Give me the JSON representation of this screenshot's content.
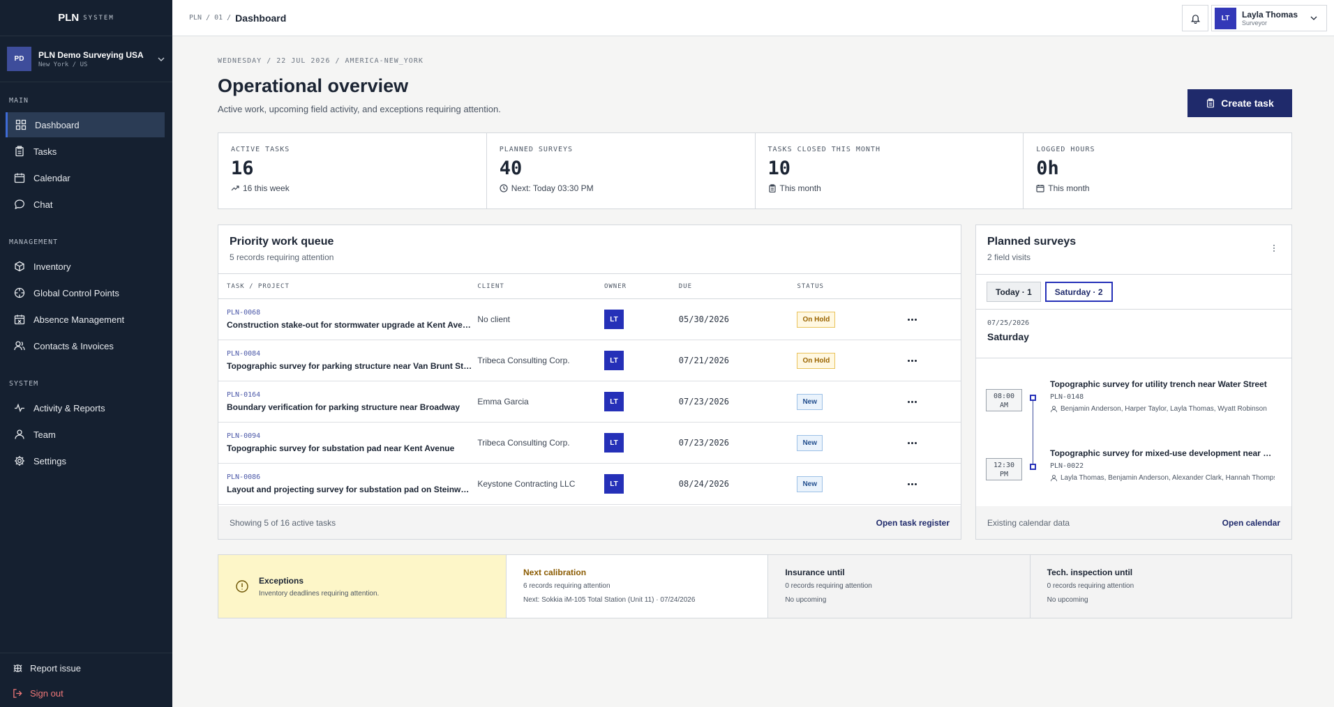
{
  "brand": {
    "name": "PLN",
    "sub": "SYSTEM"
  },
  "org": {
    "badge": "PD",
    "name": "PLN Demo Surveying USA",
    "location": "New York / US"
  },
  "nav": {
    "main_label": "MAIN",
    "main_items": [
      {
        "label": "Dashboard",
        "icon": "dashboard-icon",
        "active": true
      },
      {
        "label": "Tasks",
        "icon": "clipboard-icon"
      },
      {
        "label": "Calendar",
        "icon": "calendar-icon"
      },
      {
        "label": "Chat",
        "icon": "chat-icon"
      }
    ],
    "management_label": "MANAGEMENT",
    "management_items": [
      {
        "label": "Inventory",
        "icon": "box-icon"
      },
      {
        "label": "Global Control Points",
        "icon": "target-icon"
      },
      {
        "label": "Absence Management",
        "icon": "calendar-x-icon"
      },
      {
        "label": "Contacts & Invoices",
        "icon": "contacts-icon"
      }
    ],
    "system_label": "SYSTEM",
    "system_items": [
      {
        "label": "Activity & Reports",
        "icon": "activity-icon"
      },
      {
        "label": "Team",
        "icon": "team-icon"
      },
      {
        "label": "Settings",
        "icon": "gear-icon"
      }
    ],
    "report_issue": "Report issue",
    "sign_out": "Sign out"
  },
  "topbar": {
    "crumbs": [
      "PLN",
      "/",
      "01",
      "/"
    ],
    "current": "Dashboard",
    "user": {
      "initials": "LT",
      "name": "Layla Thomas",
      "role": "Surveyor"
    }
  },
  "header": {
    "dateline": "WEDNESDAY / 22 JUL 2026 / AMERICA-NEW_YORK",
    "title": "Operational overview",
    "subtitle": "Active work, upcoming field activity, and exceptions requiring attention.",
    "create_label": "Create task"
  },
  "stats": [
    {
      "label": "ACTIVE TASKS",
      "value": "16",
      "note": "16 this week",
      "icon": "trend-up-icon"
    },
    {
      "label": "PLANNED SURVEYS",
      "value": "40",
      "note": "Next: Today 03:30 PM",
      "icon": "clock-icon"
    },
    {
      "label": "TASKS CLOSED THIS MONTH",
      "value": "10",
      "note": "This month",
      "icon": "clipboard-icon"
    },
    {
      "label": "LOGGED HOURS",
      "value": "0h",
      "note": "This month",
      "icon": "calendar-icon"
    }
  ],
  "queue": {
    "title": "Priority work queue",
    "subtitle": "5 records requiring attention",
    "columns": [
      "TASK / PROJECT",
      "CLIENT",
      "OWNER",
      "DUE",
      "STATUS"
    ],
    "rows": [
      {
        "id": "PLN-0068",
        "name": "Construction stake-out for stormwater upgrade at Kent Avenue",
        "client": "No client",
        "owner": "LT",
        "due": "05/30/2026",
        "status": "On Hold",
        "kind": "hold"
      },
      {
        "id": "PLN-0084",
        "name": "Topographic survey for parking structure near Van Brunt Street",
        "client": "Tribeca Consulting Corp.",
        "owner": "LT",
        "due": "07/21/2026",
        "status": "On Hold",
        "kind": "hold"
      },
      {
        "id": "PLN-0164",
        "name": "Boundary verification for parking structure near Broadway",
        "client": "Emma Garcia",
        "owner": "LT",
        "due": "07/23/2026",
        "status": "New",
        "kind": "new"
      },
      {
        "id": "PLN-0094",
        "name": "Topographic survey for substation pad near Kent Avenue",
        "client": "Tribeca Consulting Corp.",
        "owner": "LT",
        "due": "07/23/2026",
        "status": "New",
        "kind": "new"
      },
      {
        "id": "PLN-0086",
        "name": "Layout and projecting survey for substation pad on Steinway Street",
        "client": "Keystone Contracting LLC",
        "owner": "LT",
        "due": "08/24/2026",
        "status": "New",
        "kind": "new"
      }
    ],
    "footer": "Showing 5 of 16 active tasks",
    "footer_link": "Open task register"
  },
  "surveys": {
    "title": "Planned surveys",
    "subtitle": "2 field visits",
    "tabs": [
      {
        "label": "Today · 1",
        "selected": false
      },
      {
        "label": "Saturday · 2",
        "selected": true
      }
    ],
    "date": "07/25/2026",
    "day": "Saturday",
    "events": [
      {
        "time1": "08:00",
        "time2": "AM",
        "title": "Topographic survey for utility trench near Water Street",
        "id": "PLN-0148",
        "people": "Benjamin Anderson, Harper Taylor, Layla Thomas, Wyatt Robinson"
      },
      {
        "time1": "12:30",
        "time2": "PM",
        "title": "Topographic survey for mixed-use development near Broadway",
        "id": "PLN-0022",
        "people": "Layla Thomas, Benjamin Anderson, Alexander Clark, Hannah Thompson"
      }
    ],
    "footer": "Existing calendar data",
    "footer_link": "Open calendar"
  },
  "exceptions": {
    "title": "Exceptions",
    "subtitle": "Inventory deadlines requiring attention.",
    "columns": [
      {
        "title": "Next calibration",
        "sub": "6 records requiring attention",
        "note": "Next: Sokkia iM-105 Total Station (Unit 11) · 07/24/2026"
      },
      {
        "title": "Insurance until",
        "sub": "0 records requiring attention",
        "note": "No upcoming"
      },
      {
        "title": "Tech. inspection until",
        "sub": "0 records requiring attention",
        "note": "No upcoming"
      }
    ]
  },
  "colors": {
    "sidebar": "#152030",
    "accent": "#1f2a6b",
    "owner": "#2530b8",
    "hold": "#e9c25a",
    "new": "#9cc0e6",
    "exception": "#fdf6c8"
  }
}
